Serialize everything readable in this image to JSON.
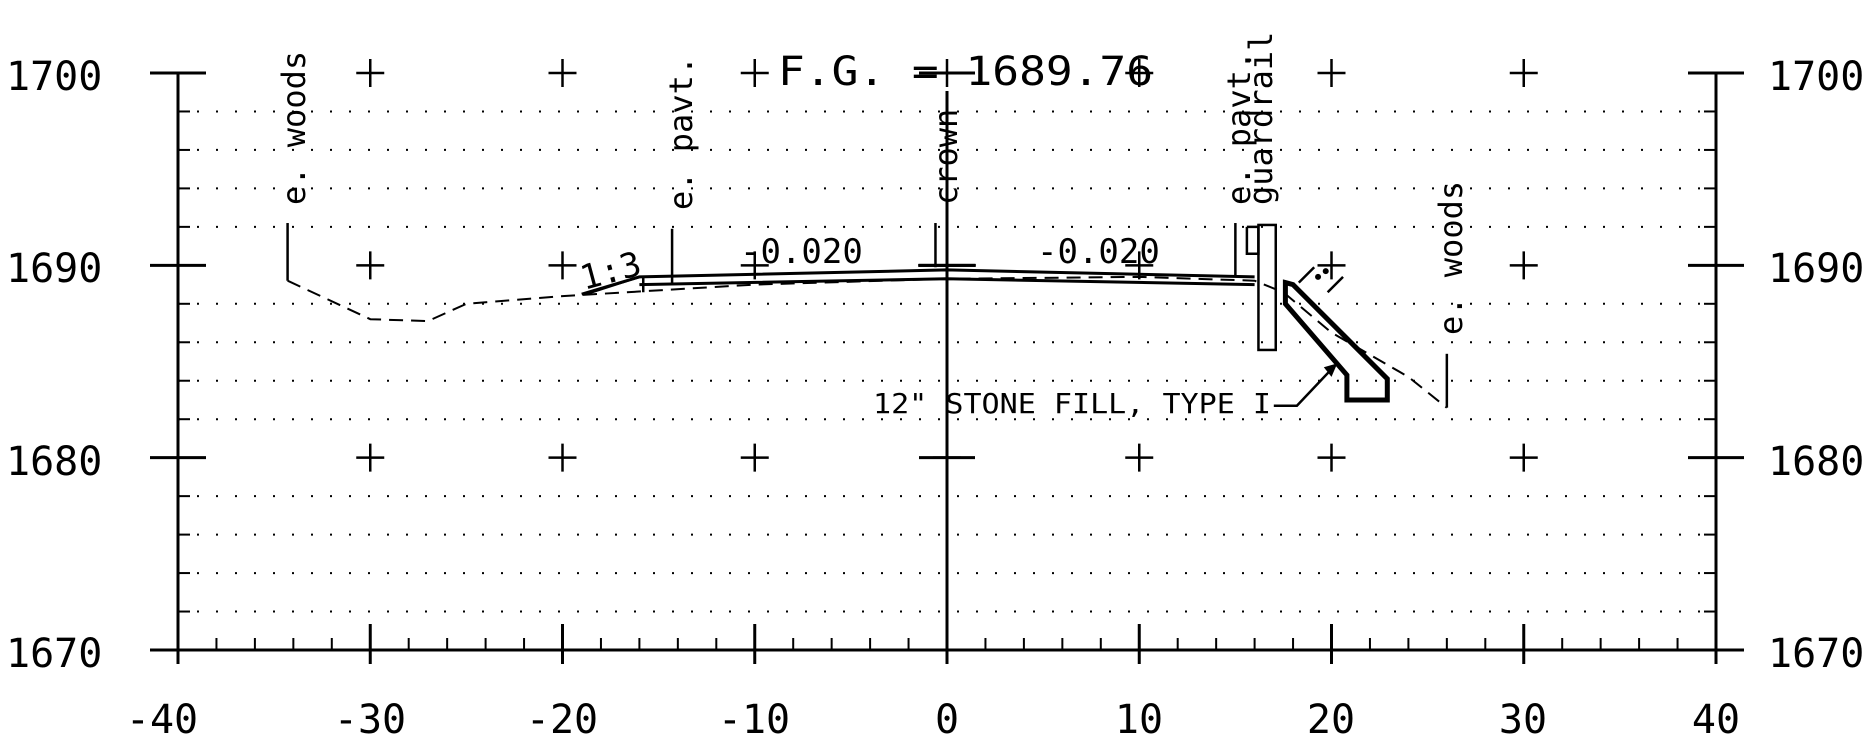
{
  "x_axis": {
    "ticks": [
      -40,
      -30,
      -20,
      -10,
      0,
      10,
      20,
      30,
      40
    ],
    "tick_labels": [
      "-40",
      "-30",
      "-20",
      "-10",
      "0",
      "10",
      "20",
      "30",
      "40"
    ],
    "range": [
      -40,
      40
    ]
  },
  "y_axis": {
    "ticks": [
      1670,
      1680,
      1690,
      1700
    ],
    "left_labels": [
      "1670",
      "1680",
      "1690",
      "1700"
    ],
    "right_labels": [
      "1670",
      "1680",
      "1690",
      "1700"
    ],
    "range": [
      1670,
      1700
    ]
  },
  "header": {
    "finished_grade": "F.G. = 1689.76"
  },
  "annotations": {
    "e_woods_left": "e. woods",
    "e_pavt_left": "e. pavt.",
    "crown": "crown",
    "e_pavt_right": "e. pavt.",
    "guardrail": "guardrail",
    "e_woods_right": "e. woods",
    "slope_ratio": "1:3",
    "cross_slope_left": "-0.020",
    "cross_slope_right": "-0.020",
    "stone_fill": "12\" STONE FILL, TYPE I"
  },
  "profiles": {
    "existing_ground": [
      [
        -34.3,
        1689.2
      ],
      [
        -30,
        1687.2
      ],
      [
        -27,
        1687.1
      ],
      [
        -25,
        1688.0
      ],
      [
        -20,
        1688.4
      ],
      [
        -10,
        1689.0
      ],
      [
        0,
        1689.3
      ],
      [
        10,
        1689.4
      ],
      [
        16,
        1689.2
      ],
      [
        17.5,
        1688.6
      ],
      [
        20,
        1686.5
      ],
      [
        24,
        1684.2
      ],
      [
        26,
        1682.6
      ]
    ],
    "proposed_grade": [
      [
        -19,
        1688.5
      ],
      [
        -16,
        1689.4
      ],
      [
        0,
        1689.76
      ],
      [
        16,
        1689.4
      ]
    ]
  }
}
